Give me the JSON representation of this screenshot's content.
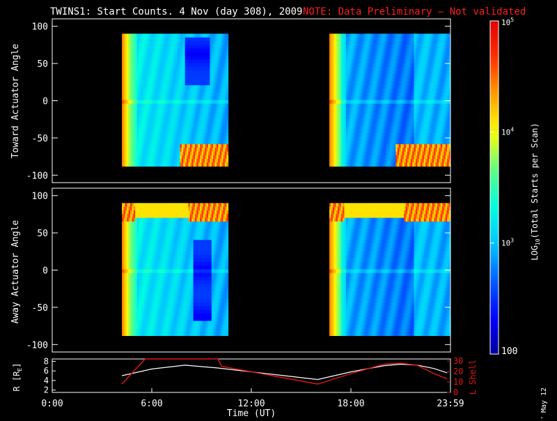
{
  "title": {
    "main": "TWINS1: Start Counts.  4 Nov (day 308), 2009",
    "note": "NOTE: Data Preliminary – Not validated"
  },
  "date_stamp": "7 May 12",
  "colors": {
    "background": "#000000",
    "foreground": "#ffffff",
    "note": "#ff1e1e",
    "r_line": "#ffffff",
    "l_line": "#e01818",
    "colormap": [
      "#0000a0",
      "#0000ff",
      "#0060ff",
      "#00c8ff",
      "#00ffe0",
      "#60ff80",
      "#ffff00",
      "#ffa000",
      "#ff3000",
      "#e00000"
    ]
  },
  "chart_data": [
    {
      "type": "heatmap",
      "name": "toward",
      "ylabel": "Toward Actuator Angle",
      "ylim": [
        -110,
        110
      ],
      "yticks": [
        "100",
        "50",
        "0",
        "-50",
        "-100"
      ],
      "x_range_hours": [
        0,
        24
      ],
      "data_blocks_hours": [
        [
          4.2,
          10.6
        ],
        [
          16.7,
          24.0
        ]
      ],
      "data_y_range": [
        -88,
        90
      ],
      "deep_minimum": {
        "hours": [
          8.0,
          9.5
        ],
        "angle": [
          20,
          85
        ]
      }
    },
    {
      "type": "heatmap",
      "name": "away",
      "ylabel": "Away Actuator Angle",
      "ylim": [
        -110,
        110
      ],
      "yticks": [
        "100",
        "50",
        "0",
        "-50",
        "-100"
      ],
      "x_range_hours": [
        0,
        24
      ],
      "data_blocks_hours": [
        [
          4.2,
          10.6
        ],
        [
          16.7,
          24.0
        ]
      ],
      "data_y_range": [
        -88,
        90
      ],
      "deep_minimum": {
        "hours": [
          8.5,
          9.6
        ],
        "angle": [
          -70,
          40
        ]
      }
    },
    {
      "type": "line",
      "name": "orbit",
      "xlabel": "Time (UT)",
      "xticks": [
        "0:00",
        "6:00",
        "12:00",
        "18:00",
        "23:59"
      ],
      "x_tick_hours": [
        0,
        6,
        12,
        18,
        24
      ],
      "left_axis": {
        "label": "R [RE]",
        "label_main": "R [R",
        "label_sub": "E",
        "label_end": "]",
        "ticks": [
          "8",
          "6",
          "4",
          "2"
        ],
        "ylim": [
          1.5,
          8.5
        ]
      },
      "right_axis": {
        "label": "L Shell",
        "ticks": [
          "30",
          "20",
          "10",
          "0"
        ],
        "ylim": [
          0,
          32
        ]
      },
      "series": [
        {
          "name": "R",
          "x": [
            4.2,
            6,
            8,
            10,
            12,
            14,
            16,
            18,
            20,
            21,
            22,
            23,
            23.8
          ],
          "values": [
            5.0,
            6.4,
            7.2,
            6.6,
            5.8,
            5.0,
            4.2,
            5.8,
            7.1,
            7.4,
            7.2,
            6.5,
            5.6
          ]
        },
        {
          "name": "L Shell",
          "x": [
            4.2,
            5.6,
            10.0,
            10.2,
            16.0,
            18.0,
            20.0,
            21.0,
            22.0,
            23.0,
            23.8
          ],
          "values": [
            8,
            32,
            32,
            25,
            8,
            18,
            27,
            28,
            26,
            18,
            13
          ]
        }
      ]
    }
  ],
  "colorbar": {
    "label": "LOG10(Total Starts per Scan)",
    "label_main": "LOG",
    "label_sub": "10",
    "label_end": "(Total Starts per Scan)",
    "range_log": [
      2,
      5
    ],
    "ticks": [
      {
        "log": 5,
        "base": "10",
        "exp": "5"
      },
      {
        "log": 4,
        "base": "10",
        "exp": "4"
      },
      {
        "log": 3,
        "base": "10",
        "exp": "3"
      },
      {
        "log": 2,
        "text": "100"
      }
    ]
  }
}
